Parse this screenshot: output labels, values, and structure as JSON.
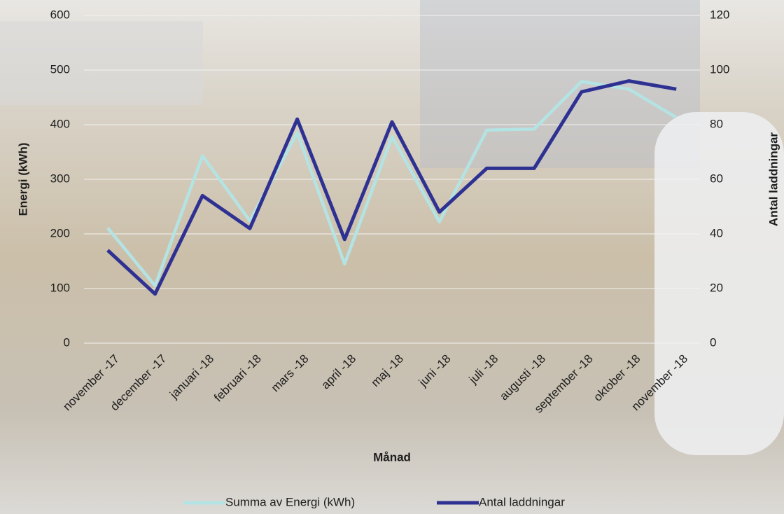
{
  "chart_data": {
    "type": "line",
    "x_label": "Månad",
    "y_label": "Energi  (kWh)",
    "y2_label": "Antal laddningar",
    "categories": [
      "november -17",
      "december -17",
      "januari -18",
      "februari -18",
      "mars -18",
      "april -18",
      "maj -18",
      "juni -18",
      "juli -18",
      "augusti -18",
      "september -18",
      "oktober -18",
      "november -18"
    ],
    "series": [
      {
        "name": "Summa av Energi (kWh)",
        "color": "#b4e3e3",
        "values": [
          211,
          105,
          343,
          224,
          385,
          145,
          378,
          222,
          390,
          392,
          479,
          465,
          413
        ]
      },
      {
        "name": "Antal laddningar",
        "color": "#2e3192",
        "axis": "y2",
        "values": [
          34,
          18,
          54,
          42,
          82,
          38,
          81,
          48,
          64,
          64,
          92,
          96,
          93
        ]
      }
    ],
    "ylim": [
      0,
      600
    ],
    "yticks": [
      0,
      100,
      200,
      300,
      400,
      500,
      600
    ],
    "y2lim": [
      0,
      120
    ],
    "y2ticks": [
      0,
      20,
      40,
      60,
      80,
      100,
      120
    ],
    "grid": true,
    "legend": "bottom"
  }
}
